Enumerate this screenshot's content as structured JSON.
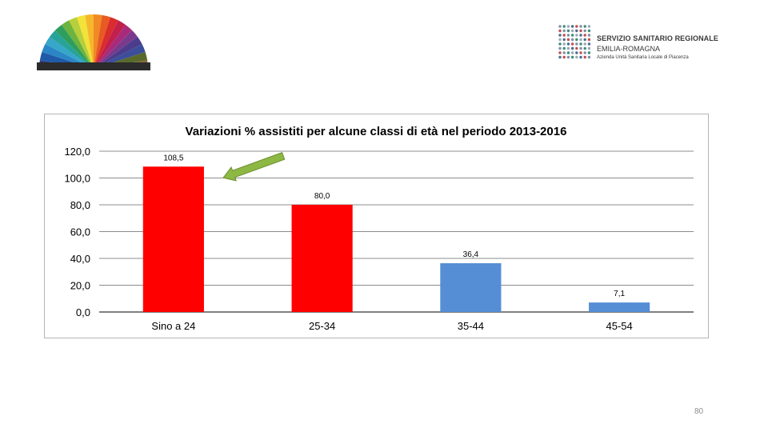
{
  "brand": {
    "line1": "SERVIZIO SANITARIO REGIONALE",
    "line2": "EMILIA-ROMAGNA",
    "line3": "Azienda Unità Sanitaria Locale di Piacenza"
  },
  "page_number": "80",
  "colors": {
    "highlight_bar": "#ff0000",
    "normal_bar": "#558ed5",
    "arrow": "#8db843",
    "arrow_outline": "#6d8f33",
    "gridline": "#8c8c8c"
  },
  "chart_data": {
    "type": "bar",
    "title": "Variazioni % assistiti per alcune classi di età nel periodo 2013-2016",
    "xlabel": "",
    "ylabel": "",
    "categories": [
      "Sino a 24",
      "25-34",
      "35-44",
      "45-54"
    ],
    "values": [
      108.5,
      80.0,
      36.4,
      7.1
    ],
    "data_labels": [
      "108,5",
      "80,0",
      "36,4",
      "7,1"
    ],
    "bar_colors": [
      "#ff0000",
      "#ff0000",
      "#558ed5",
      "#558ed5"
    ],
    "ylim": [
      0,
      120
    ],
    "y_ticks": [
      0,
      20,
      40,
      60,
      80,
      100,
      120
    ],
    "y_tick_labels": [
      "0,0",
      "20,0",
      "40,0",
      "60,0",
      "80,0",
      "100,0",
      "120,0"
    ],
    "grid": true,
    "legend": "none",
    "annotation": "green arrow pointing to the first bar"
  }
}
